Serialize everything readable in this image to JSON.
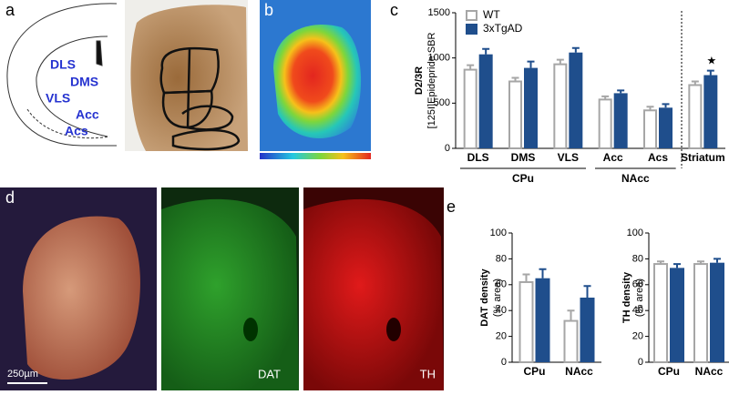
{
  "panel_labels": [
    "a",
    "b",
    "c",
    "d",
    "e"
  ],
  "atlas_labels": [
    "DLS",
    "DMS",
    "VLS",
    "Acc",
    "Acs"
  ],
  "image_labels": {
    "scale_bar": "250µm",
    "dat": "DAT",
    "th": "TH"
  },
  "chart_data": [
    {
      "type": "bar",
      "y_label": "D2/3R",
      "y_label_unit": "[125I]Epidepride SBR",
      "categories": [
        "DLS",
        "DMS",
        "VLS",
        "Acc",
        "Acs",
        "Striatum"
      ],
      "series": [
        {
          "name": "WT",
          "color": "#a6a6a6",
          "filled": false,
          "values": [
            870,
            740,
            930,
            540,
            420,
            700
          ],
          "errors": [
            50,
            40,
            50,
            35,
            40,
            40
          ]
        },
        {
          "name": "3xTgAD",
          "color": "#1f4e8c",
          "filled": true,
          "values": [
            1040,
            890,
            1060,
            610,
            450,
            810
          ],
          "errors": [
            60,
            70,
            50,
            30,
            40,
            50
          ]
        }
      ],
      "ylim": [
        0,
        1500
      ],
      "yticks": [
        0,
        500,
        1000,
        1500
      ],
      "group_labels": [
        "CPu",
        "NAcc"
      ],
      "annotation": "★"
    },
    {
      "type": "bar",
      "y_label": "DAT density",
      "y_label_unit": "(% area)",
      "categories": [
        "CPu",
        "NAcc"
      ],
      "series": [
        {
          "color": "#a6a6a6",
          "filled": false,
          "values": [
            62,
            32
          ],
          "errors": [
            6,
            8
          ]
        },
        {
          "color": "#1f4e8c",
          "filled": true,
          "values": [
            65,
            50
          ],
          "errors": [
            7,
            9
          ]
        }
      ],
      "ylim": [
        0,
        100
      ],
      "yticks": [
        0,
        20,
        40,
        60,
        80,
        100
      ]
    },
    {
      "type": "bar",
      "y_label": "TH density",
      "y_label_unit": "(% area)",
      "categories": [
        "CPu",
        "NAcc"
      ],
      "series": [
        {
          "color": "#a6a6a6",
          "filled": false,
          "values": [
            76,
            76
          ],
          "errors": [
            2,
            2
          ]
        },
        {
          "color": "#1f4e8c",
          "filled": true,
          "values": [
            73,
            77
          ],
          "errors": [
            3,
            3
          ]
        }
      ],
      "ylim": [
        0,
        100
      ],
      "yticks": [
        0,
        20,
        40,
        60,
        80,
        100
      ]
    }
  ]
}
